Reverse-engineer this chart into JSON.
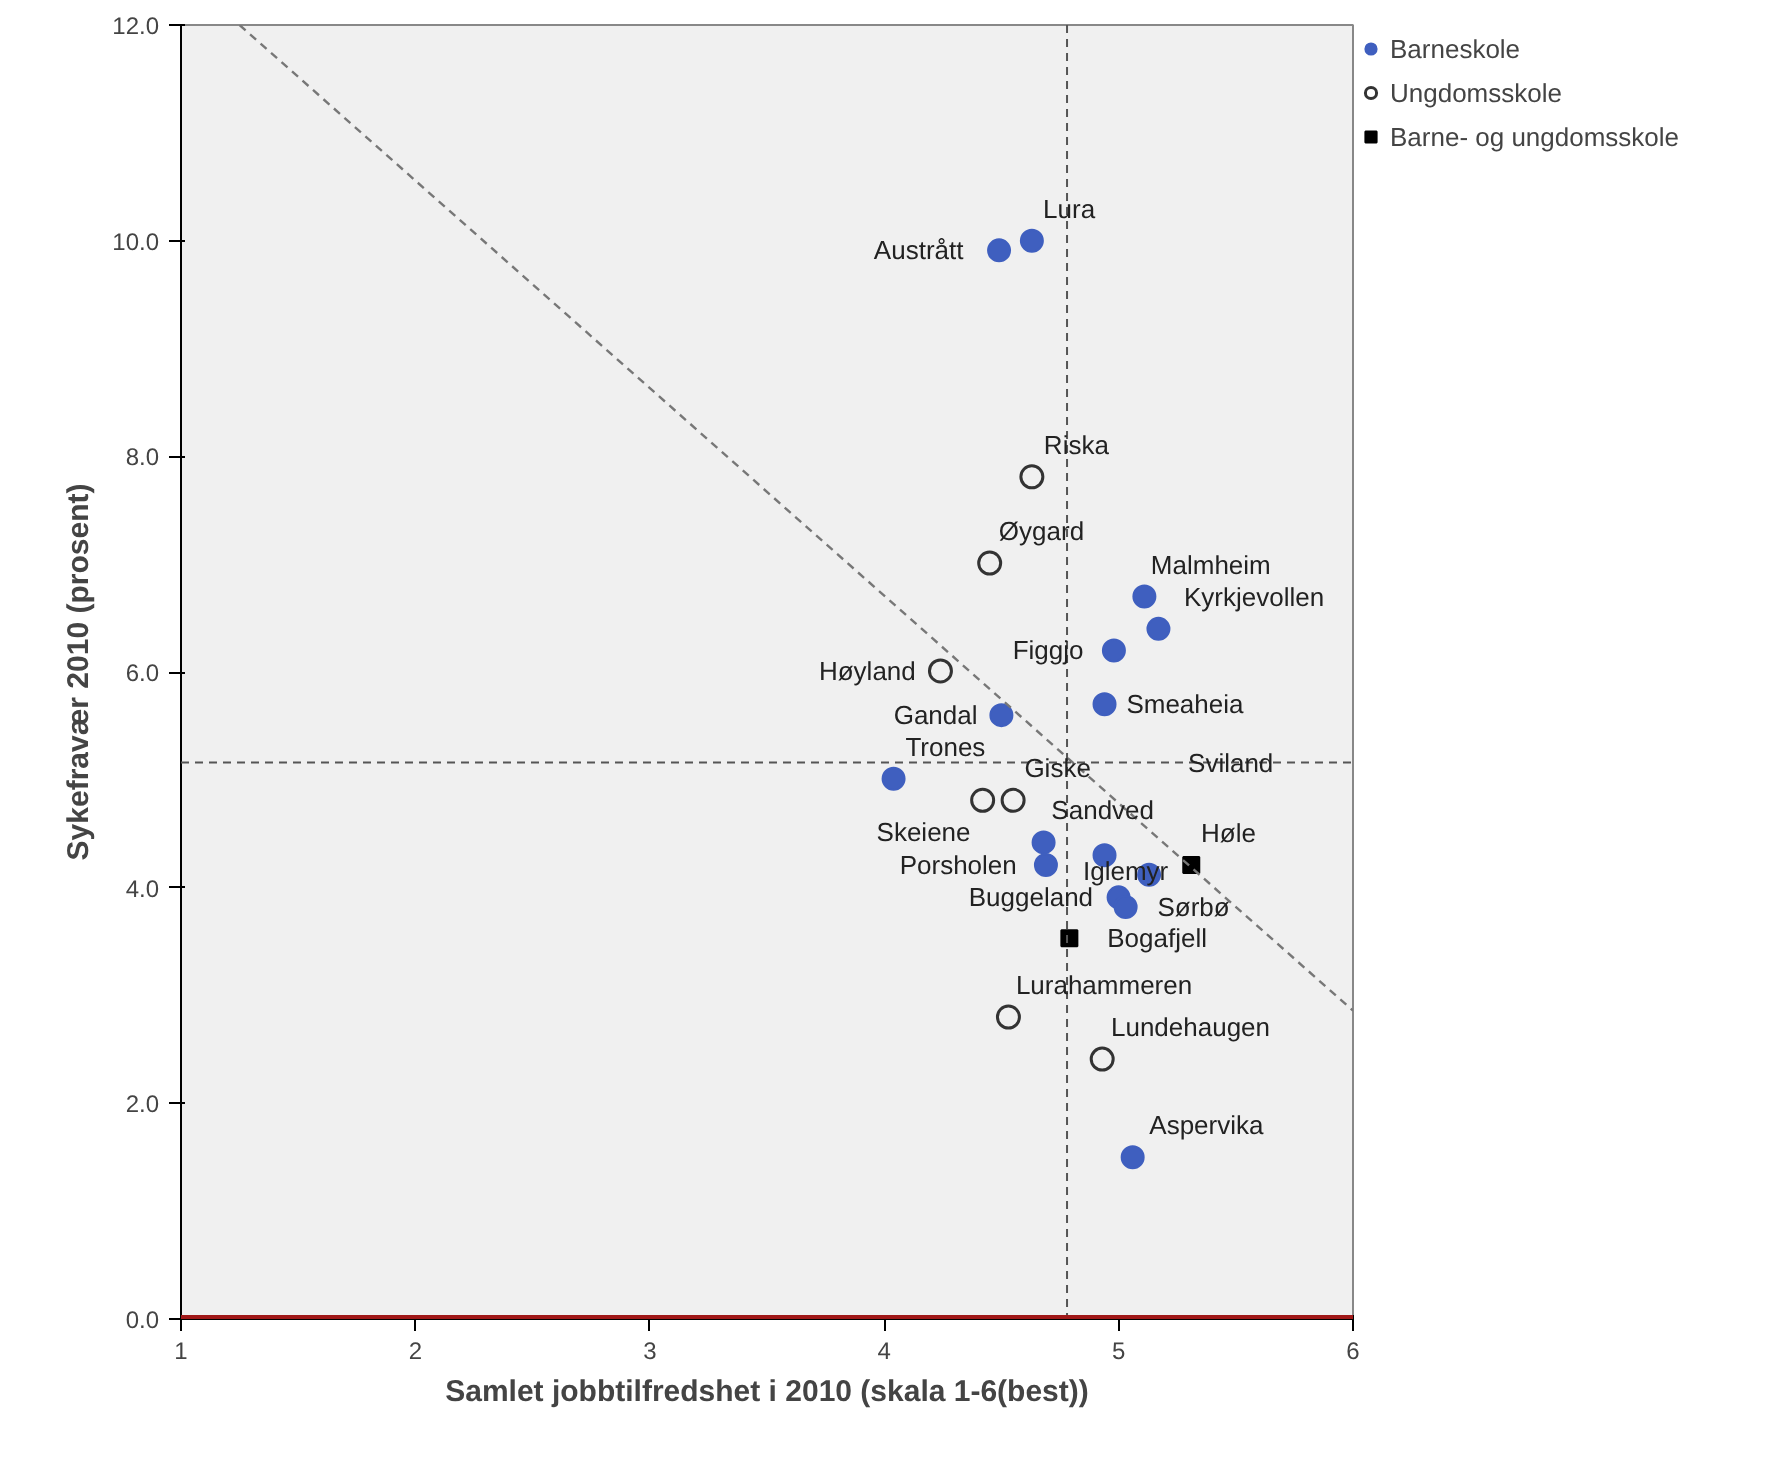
{
  "chart_data": {
    "type": "scatter",
    "xlabel": "Samlet jobbtilfredshet i 2010 (skala 1-6(best))",
    "ylabel": "Sykefravær 2010 (prosent)",
    "xlim": [
      1,
      6
    ],
    "ylim": [
      0,
      12
    ],
    "xticks": [
      1,
      2,
      3,
      4,
      5,
      6
    ],
    "yticks": [
      {
        "value": 0,
        "label": "0.0"
      },
      {
        "value": 2,
        "label": "2.0"
      },
      {
        "value": 4,
        "label": "4.0"
      },
      {
        "value": 6,
        "label": "6.0"
      },
      {
        "value": 8,
        "label": "8.0"
      },
      {
        "value": 10,
        "label": "10.0"
      },
      {
        "value": 12,
        "label": "12.0"
      }
    ],
    "grid": false,
    "legend": "right",
    "series": [
      {
        "name": "Barneskole",
        "color": "#3f5fbf",
        "marker": "circle",
        "x": [
          4.63,
          4.49,
          5.11,
          5.17,
          4.98,
          4.94,
          4.5,
          4.04,
          4.68,
          4.69,
          4.94,
          5.13,
          5.0,
          5.03,
          5.06
        ],
        "values": [
          10.0,
          9.91,
          6.7,
          6.4,
          6.2,
          5.7,
          5.6,
          5.01,
          4.42,
          4.21,
          4.3,
          4.12,
          3.91,
          3.82,
          1.5
        ]
      },
      {
        "name": "Ungdomsskole",
        "color": "#333333",
        "marker": "circle_open",
        "x": [
          4.63,
          4.45,
          4.24,
          4.42,
          4.55,
          4.53,
          4.93
        ],
        "values": [
          7.81,
          7.01,
          6.01,
          4.81,
          4.81,
          2.8,
          2.41
        ]
      },
      {
        "name": "Barne- og ungdomsskole",
        "color": "#000000",
        "marker": "square",
        "x": [
          5.31,
          4.79
        ],
        "values": [
          4.21,
          3.53
        ]
      },
      {
        "type": "line",
        "color": "#777777",
        "line_style": "dashed",
        "x": [
          1.25,
          6
        ],
        "values": [
          12.0,
          2.86
        ]
      }
    ],
    "ref_lines": [
      {
        "axis": "x",
        "value": 4.78,
        "color": "#555555",
        "line_style": "dashed"
      },
      {
        "axis": "y",
        "value": 5.16,
        "color": "#555555",
        "line_style": "dashed"
      },
      {
        "axis": "y",
        "value": 0,
        "color": "#a01818",
        "line_style": "solid"
      }
    ],
    "annotations": [
      {
        "text": "Lura",
        "x": 4.63,
        "y": 10.0
      },
      {
        "text": "Austrått",
        "x": 4.49,
        "y": 9.91
      },
      {
        "text": "Riska",
        "x": 4.63,
        "y": 7.81
      },
      {
        "text": "Øygard",
        "x": 4.45,
        "y": 7.01
      },
      {
        "text": "Malmheim",
        "x": 5.11,
        "y": 6.7
      },
      {
        "text": "Kyrkjevollen",
        "x": 5.17,
        "y": 6.4
      },
      {
        "text": "Figgjo",
        "x": 4.98,
        "y": 6.2
      },
      {
        "text": "Høyland",
        "x": 4.24,
        "y": 6.01
      },
      {
        "text": "Gandal",
        "x": 4.5,
        "y": 5.6
      },
      {
        "text": "Smeaheia",
        "x": 4.94,
        "y": 5.7
      },
      {
        "text": "Trones",
        "x": 4.04,
        "y": 5.01
      },
      {
        "text": "Giske",
        "x": 4.55,
        "y": 4.81
      },
      {
        "text": "Sviland",
        "x": 5.79,
        "y": 5.16
      },
      {
        "text": "Skeiene",
        "x": 4.42,
        "y": 4.81
      },
      {
        "text": "Sandved",
        "x": 4.68,
        "y": 4.42
      },
      {
        "text": "Høle",
        "x": 5.31,
        "y": 4.21
      },
      {
        "text": "Porsholen",
        "x": 4.69,
        "y": 4.21
      },
      {
        "text": "Buggeland",
        "x": 5.0,
        "y": 3.91
      },
      {
        "text": "Sørbø",
        "x": 5.13,
        "y": 4.12
      },
      {
        "text": "Bogafjell",
        "x": 4.79,
        "y": 3.53
      },
      {
        "text": "Iglemyr",
        "x": 5.03,
        "y": 3.82
      },
      {
        "text": "Lurahammeren",
        "x": 4.53,
        "y": 2.8
      },
      {
        "text": "Lundehaugen",
        "x": 4.93,
        "y": 2.41
      },
      {
        "text": "Aspervika",
        "x": 5.06,
        "y": 1.5
      }
    ]
  }
}
